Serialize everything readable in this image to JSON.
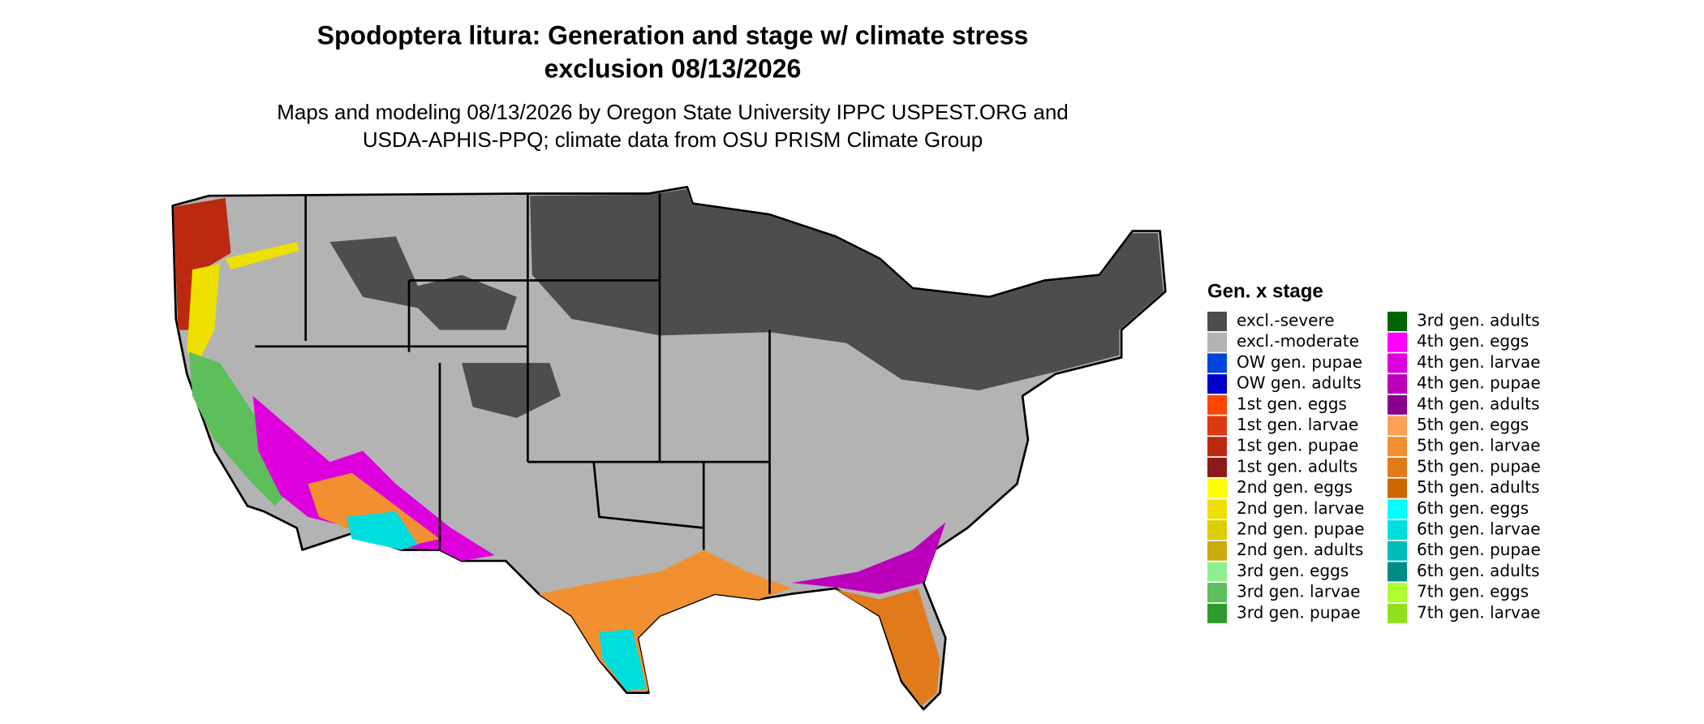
{
  "title": [
    "Spodoptera litura: Generation and stage w/ climate stress",
    "exclusion 08/13/2026"
  ],
  "subtitle": [
    "Maps and modeling 08/13/2026 by Oregon State University IPPC USPEST.ORG and",
    "USDA-APHIS-PPQ; climate data from OSU PRISM Climate Group"
  ],
  "legend": {
    "title": "Gen. x stage",
    "items": [
      {
        "label": "excl.-severe",
        "color": "#4d4d4d"
      },
      {
        "label": "excl.-moderate",
        "color": "#b3b3b3"
      },
      {
        "label": "OW gen. pupae",
        "color": "#0044dd"
      },
      {
        "label": "OW gen. adults",
        "color": "#0000cc"
      },
      {
        "label": "1st gen. eggs",
        "color": "#ff4500"
      },
      {
        "label": "1st gen. larvae",
        "color": "#dd3a10"
      },
      {
        "label": "1st gen. pupae",
        "color": "#bb2a10"
      },
      {
        "label": "1st gen. adults",
        "color": "#8b1a1a"
      },
      {
        "label": "2nd gen. eggs",
        "color": "#ffff00"
      },
      {
        "label": "2nd gen. larvae",
        "color": "#eee000"
      },
      {
        "label": "2nd gen. pupae",
        "color": "#ddcc00"
      },
      {
        "label": "2nd gen. adults",
        "color": "#ccaa10"
      },
      {
        "label": "3rd gen. eggs",
        "color": "#90ee90"
      },
      {
        "label": "3rd gen. larvae",
        "color": "#5cbf5c"
      },
      {
        "label": "3rd gen. pupae",
        "color": "#2e9b2e"
      },
      {
        "label": "3rd gen. adults",
        "color": "#006400"
      },
      {
        "label": "4th gen. eggs",
        "color": "#ff00ff"
      },
      {
        "label": "4th gen. larvae",
        "color": "#dd00dd"
      },
      {
        "label": "4th gen. pupae",
        "color": "#bb00bb"
      },
      {
        "label": "4th gen. adults",
        "color": "#8b008b"
      },
      {
        "label": "5th gen. eggs",
        "color": "#ffa054"
      },
      {
        "label": "5th gen. larvae",
        "color": "#f09030"
      },
      {
        "label": "5th gen. pupae",
        "color": "#e07a1a"
      },
      {
        "label": "5th gen. adults",
        "color": "#cd6600"
      },
      {
        "label": "6th gen. eggs",
        "color": "#00ffff"
      },
      {
        "label": "6th gen. larvae",
        "color": "#00dddd"
      },
      {
        "label": "6th gen. pupae",
        "color": "#00bbbb"
      },
      {
        "label": "6th gen. adults",
        "color": "#008b8b"
      },
      {
        "label": "7th gen. eggs",
        "color": "#adff2f"
      },
      {
        "label": "7th gen. larvae",
        "color": "#90e020"
      }
    ]
  }
}
